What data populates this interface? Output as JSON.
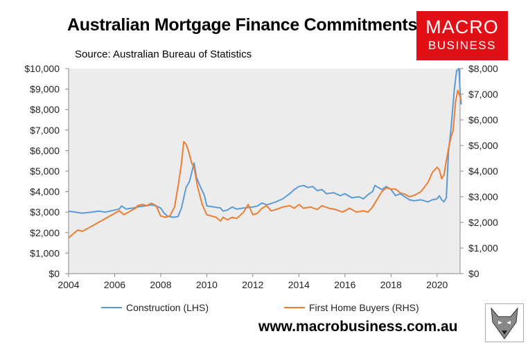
{
  "header": {
    "title": "Australian Mortgage Finance Commitments",
    "source": "Source: Australian Bureau of Statistics"
  },
  "logo": {
    "line1": "MACRO",
    "line2": "BUSINESS"
  },
  "footer": {
    "url": "www.macrobusiness.com.au"
  },
  "colors": {
    "construction": "#5b9bd5",
    "first_home_buyers": "#ed7d31",
    "logo": "#e20f17",
    "plot_bg": "#ececec"
  },
  "chart_data": {
    "type": "line",
    "title": "Australian Mortgage Finance Commitments",
    "xlim": [
      2004,
      2021
    ],
    "x_ticks": [
      2004,
      2006,
      2008,
      2010,
      2012,
      2014,
      2016,
      2018,
      2020
    ],
    "x_tick_labels": [
      "2004",
      "2006",
      "2008",
      "2010",
      "2012",
      "2014",
      "2016",
      "2018",
      "2020"
    ],
    "y_left": {
      "lim": [
        0,
        10000
      ],
      "ticks": [
        0,
        1000,
        2000,
        3000,
        4000,
        5000,
        6000,
        7000,
        8000,
        9000,
        10000
      ],
      "tick_labels": [
        "$0",
        "$1,000",
        "$2,000",
        "$3,000",
        "$4,000",
        "$5,000",
        "$6,000",
        "$7,000",
        "$8,000",
        "$9,000",
        "$10,000"
      ]
    },
    "y_right": {
      "lim": [
        0,
        8000
      ],
      "ticks": [
        0,
        1000,
        2000,
        3000,
        4000,
        5000,
        6000,
        7000,
        8000
      ],
      "tick_labels": [
        "$0",
        "$1,000",
        "$2,000",
        "$3,000",
        "$4,000",
        "$5,000",
        "$6,000",
        "$7,000",
        "$8,000"
      ]
    },
    "grid": false,
    "legend_position": "bottom",
    "series": [
      {
        "name": "Construction (LHS)",
        "axis": "left",
        "color": "#5b9bd5",
        "points": [
          [
            2004.0,
            3050
          ],
          [
            2004.3,
            3000
          ],
          [
            2004.6,
            2950
          ],
          [
            2005.0,
            3000
          ],
          [
            2005.3,
            3050
          ],
          [
            2005.6,
            3000
          ],
          [
            2006.0,
            3100
          ],
          [
            2006.2,
            3150
          ],
          [
            2006.3,
            3300
          ],
          [
            2006.5,
            3150
          ],
          [
            2006.8,
            3200
          ],
          [
            2007.0,
            3250
          ],
          [
            2007.3,
            3300
          ],
          [
            2007.6,
            3350
          ],
          [
            2007.8,
            3300
          ],
          [
            2008.0,
            3200
          ],
          [
            2008.15,
            2950
          ],
          [
            2008.3,
            2800
          ],
          [
            2008.55,
            2750
          ],
          [
            2008.75,
            2780
          ],
          [
            2008.9,
            3200
          ],
          [
            2009.0,
            3700
          ],
          [
            2009.1,
            4200
          ],
          [
            2009.25,
            4500
          ],
          [
            2009.45,
            5400
          ],
          [
            2009.55,
            4700
          ],
          [
            2009.7,
            4300
          ],
          [
            2009.9,
            3800
          ],
          [
            2010.0,
            3300
          ],
          [
            2010.3,
            3250
          ],
          [
            2010.6,
            3200
          ],
          [
            2010.7,
            3050
          ],
          [
            2010.9,
            3100
          ],
          [
            2011.1,
            3250
          ],
          [
            2011.3,
            3150
          ],
          [
            2011.6,
            3200
          ],
          [
            2012.0,
            3250
          ],
          [
            2012.2,
            3300
          ],
          [
            2012.4,
            3450
          ],
          [
            2012.6,
            3350
          ],
          [
            2013.0,
            3500
          ],
          [
            2013.3,
            3650
          ],
          [
            2013.6,
            3900
          ],
          [
            2013.8,
            4100
          ],
          [
            2014.0,
            4250
          ],
          [
            2014.2,
            4300
          ],
          [
            2014.4,
            4200
          ],
          [
            2014.6,
            4250
          ],
          [
            2014.8,
            4050
          ],
          [
            2015.0,
            4100
          ],
          [
            2015.2,
            3900
          ],
          [
            2015.5,
            3950
          ],
          [
            2015.8,
            3800
          ],
          [
            2016.0,
            3900
          ],
          [
            2016.3,
            3700
          ],
          [
            2016.6,
            3750
          ],
          [
            2016.8,
            3650
          ],
          [
            2017.0,
            3850
          ],
          [
            2017.2,
            4000
          ],
          [
            2017.3,
            4300
          ],
          [
            2017.6,
            4100
          ],
          [
            2017.8,
            4250
          ],
          [
            2018.0,
            4100
          ],
          [
            2018.2,
            3800
          ],
          [
            2018.4,
            3900
          ],
          [
            2018.6,
            3750
          ],
          [
            2018.8,
            3600
          ],
          [
            2019.0,
            3550
          ],
          [
            2019.3,
            3600
          ],
          [
            2019.6,
            3500
          ],
          [
            2019.8,
            3600
          ],
          [
            2020.0,
            3650
          ],
          [
            2020.1,
            3800
          ],
          [
            2020.2,
            3600
          ],
          [
            2020.3,
            3500
          ],
          [
            2020.4,
            3700
          ],
          [
            2020.5,
            6000
          ],
          [
            2020.6,
            7000
          ],
          [
            2020.75,
            9000
          ],
          [
            2020.85,
            9900
          ],
          [
            2020.95,
            10000
          ],
          [
            2021.0,
            8900
          ],
          [
            2021.05,
            8250
          ]
        ]
      },
      {
        "name": "First Home Buyers (RHS)",
        "axis": "right",
        "color": "#ed7d31",
        "points": [
          [
            2004.0,
            1400
          ],
          [
            2004.2,
            1550
          ],
          [
            2004.4,
            1700
          ],
          [
            2004.6,
            1650
          ],
          [
            2004.8,
            1750
          ],
          [
            2005.0,
            1850
          ],
          [
            2005.3,
            2000
          ],
          [
            2005.6,
            2150
          ],
          [
            2005.9,
            2300
          ],
          [
            2006.2,
            2450
          ],
          [
            2006.4,
            2300
          ],
          [
            2006.6,
            2400
          ],
          [
            2006.9,
            2550
          ],
          [
            2007.0,
            2650
          ],
          [
            2007.2,
            2700
          ],
          [
            2007.4,
            2650
          ],
          [
            2007.6,
            2750
          ],
          [
            2007.8,
            2650
          ],
          [
            2008.0,
            2250
          ],
          [
            2008.2,
            2200
          ],
          [
            2008.4,
            2250
          ],
          [
            2008.6,
            2600
          ],
          [
            2008.75,
            3400
          ],
          [
            2008.9,
            4300
          ],
          [
            2009.0,
            5150
          ],
          [
            2009.1,
            5050
          ],
          [
            2009.2,
            4800
          ],
          [
            2009.35,
            4300
          ],
          [
            2009.45,
            4150
          ],
          [
            2009.6,
            3400
          ],
          [
            2009.8,
            2700
          ],
          [
            2010.0,
            2300
          ],
          [
            2010.2,
            2250
          ],
          [
            2010.4,
            2200
          ],
          [
            2010.6,
            2050
          ],
          [
            2010.7,
            2200
          ],
          [
            2010.9,
            2100
          ],
          [
            2011.1,
            2200
          ],
          [
            2011.3,
            2150
          ],
          [
            2011.6,
            2400
          ],
          [
            2011.8,
            2700
          ],
          [
            2012.0,
            2300
          ],
          [
            2012.2,
            2350
          ],
          [
            2012.4,
            2550
          ],
          [
            2012.6,
            2650
          ],
          [
            2012.8,
            2450
          ],
          [
            2013.0,
            2500
          ],
          [
            2013.3,
            2600
          ],
          [
            2013.6,
            2650
          ],
          [
            2013.8,
            2550
          ],
          [
            2014.0,
            2700
          ],
          [
            2014.2,
            2550
          ],
          [
            2014.5,
            2600
          ],
          [
            2014.8,
            2500
          ],
          [
            2015.0,
            2650
          ],
          [
            2015.3,
            2550
          ],
          [
            2015.6,
            2500
          ],
          [
            2015.9,
            2400
          ],
          [
            2016.2,
            2550
          ],
          [
            2016.5,
            2400
          ],
          [
            2016.8,
            2450
          ],
          [
            2017.0,
            2400
          ],
          [
            2017.2,
            2600
          ],
          [
            2017.4,
            2900
          ],
          [
            2017.6,
            3200
          ],
          [
            2017.8,
            3350
          ],
          [
            2018.0,
            3300
          ],
          [
            2018.2,
            3300
          ],
          [
            2018.4,
            3150
          ],
          [
            2018.6,
            3100
          ],
          [
            2018.8,
            3000
          ],
          [
            2019.0,
            3050
          ],
          [
            2019.3,
            3200
          ],
          [
            2019.6,
            3550
          ],
          [
            2019.8,
            3950
          ],
          [
            2020.0,
            4150
          ],
          [
            2020.1,
            4050
          ],
          [
            2020.2,
            3700
          ],
          [
            2020.3,
            3850
          ],
          [
            2020.4,
            4400
          ],
          [
            2020.5,
            4900
          ],
          [
            2020.6,
            5300
          ],
          [
            2020.7,
            5600
          ],
          [
            2020.8,
            6700
          ],
          [
            2020.9,
            7150
          ],
          [
            2021.0,
            6900
          ],
          [
            2021.05,
            6750
          ]
        ]
      }
    ]
  }
}
